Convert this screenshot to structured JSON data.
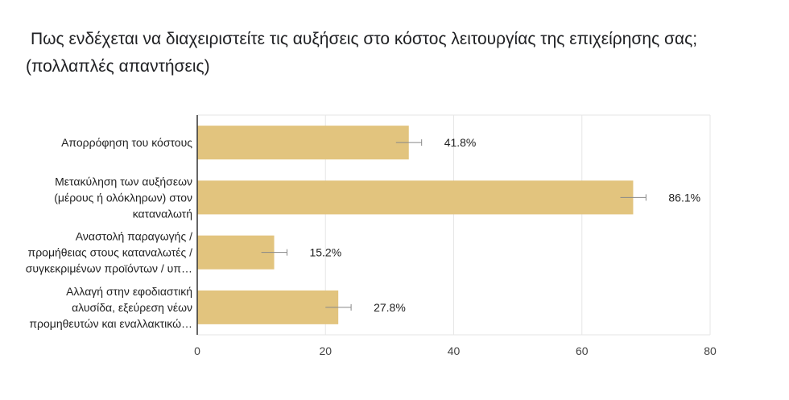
{
  "title_line1": "Πως ενδέχεται να διαχειριστείτε τις αυξήσεις στο κόστος λειτουργίας της επιχείρησης σας;",
  "title_line2": "(πολλαπλές απαντήσεις)",
  "chart_data": {
    "type": "bar",
    "orientation": "horizontal",
    "categories": [
      [
        "Απορρόφηση του κόστους"
      ],
      [
        "Μετακύληση των αυξήσεων",
        "(μέρους ή ολόκληρων) στον",
        "καταναλωτή"
      ],
      [
        "Αναστολή παραγωγής /",
        "προμήθειας στους καταναλωτές /",
        "συγκεκριμένων προϊόντων / υπ…"
      ],
      [
        "Αλλαγή στην εφοδιαστική",
        "αλυσίδα, εξεύρεση νέων",
        "προμηθευτών και εναλλακτικώ…"
      ]
    ],
    "values": [
      33,
      68,
      12,
      22
    ],
    "data_labels": [
      "41.8%",
      "86.1%",
      "15.2%",
      "27.8%"
    ],
    "error": [
      2,
      2,
      2,
      2
    ],
    "xlim": [
      0,
      80
    ],
    "xticks": [
      "0",
      "20",
      "40",
      "60",
      "80"
    ],
    "grid": true,
    "bar_color": "#e2c47e",
    "error_color": "#888888"
  }
}
